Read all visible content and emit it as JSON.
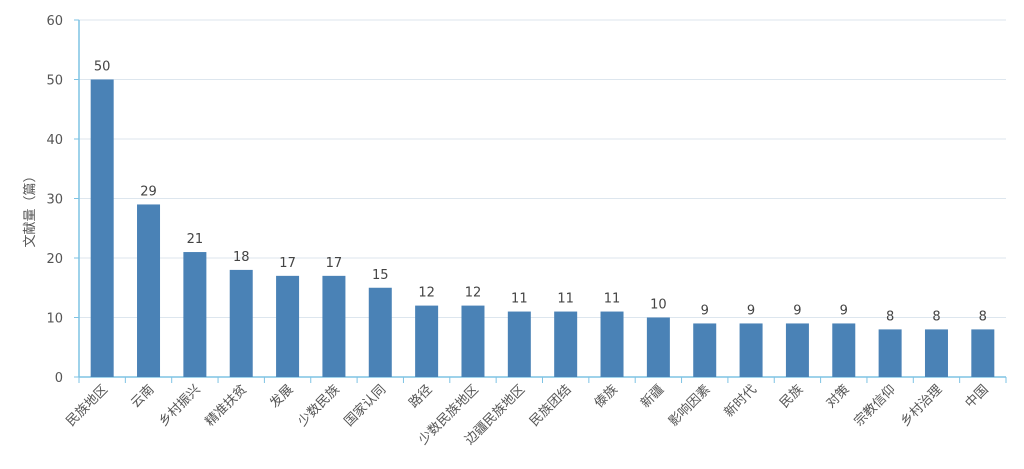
{
  "chart_data": {
    "type": "bar",
    "ylabel": "文献量（篇）",
    "xlabel": "",
    "ylim": [
      0,
      60
    ],
    "yticks": [
      0,
      10,
      20,
      30,
      40,
      50,
      60
    ],
    "grid": true,
    "categories": [
      "民族地区",
      "云南",
      "乡村振兴",
      "精准扶贫",
      "发展",
      "少数民族",
      "国家认同",
      "路径",
      "少数民族地区",
      "边疆民族地区",
      "民族团结",
      "傣族",
      "新疆",
      "影响因素",
      "新时代",
      "民族",
      "对策",
      "宗教信仰",
      "乡村治理",
      "中国"
    ],
    "values": [
      50,
      29,
      21,
      18,
      17,
      17,
      15,
      12,
      12,
      11,
      11,
      11,
      10,
      9,
      9,
      9,
      9,
      8,
      8,
      8
    ],
    "colors": {
      "bar": "#4a82b6",
      "axis": "#7ec3e4",
      "grid": "#dde6ee"
    }
  }
}
